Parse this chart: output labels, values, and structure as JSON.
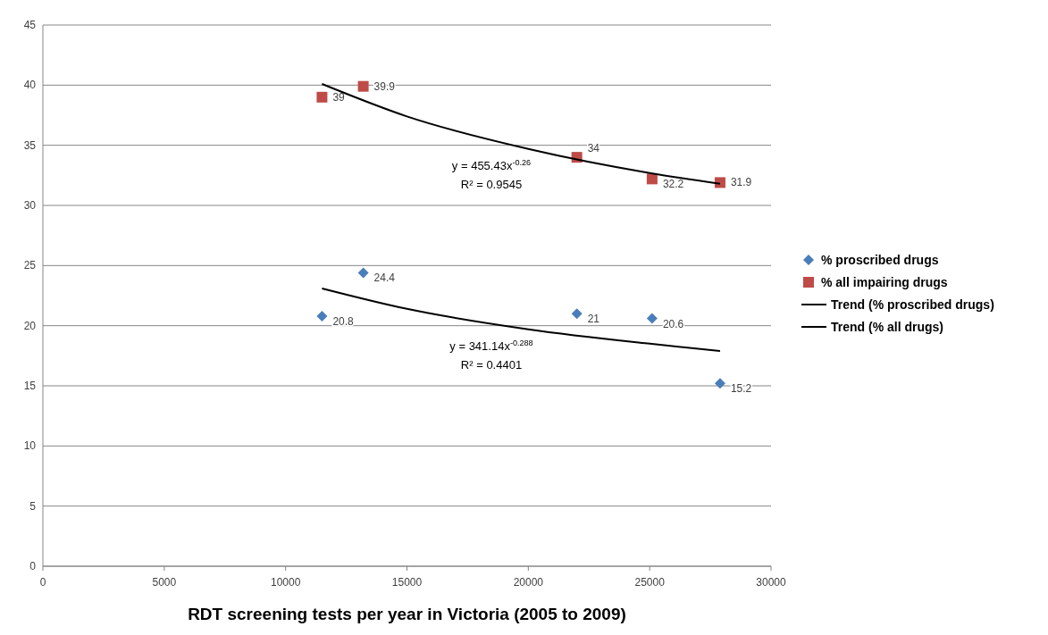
{
  "chart_data": {
    "type": "scatter",
    "xlabel": "RDT screening tests per year in Victoria (2005 to 2009)",
    "xlim": [
      0,
      30000
    ],
    "xticks": [
      0,
      5000,
      10000,
      15000,
      20000,
      25000,
      30000
    ],
    "ylim": [
      0,
      45
    ],
    "yticks": [
      0,
      5,
      10,
      15,
      20,
      25,
      30,
      35,
      40,
      45
    ],
    "grid": "y",
    "legend": "right",
    "series": [
      {
        "name": "% proscribed drugs",
        "color": "#4a7ebb",
        "marker": "diamond",
        "x": [
          11500,
          13200,
          22000,
          25100,
          27900
        ],
        "values": [
          20.8,
          24.4,
          21,
          20.6,
          15.2
        ],
        "value_labels": [
          "20.8",
          "24.4",
          "21",
          "20.6",
          "15.2"
        ]
      },
      {
        "name": "% all impairing drugs",
        "color": "#be4b48",
        "marker": "square",
        "x": [
          11500,
          13200,
          22000,
          25100,
          27900
        ],
        "values": [
          39,
          39.9,
          34,
          32.2,
          31.9
        ],
        "value_labels": [
          "39",
          "39.9",
          "34",
          "32.2",
          "31.9"
        ]
      },
      {
        "name": "Trend (% proscribed drugs)",
        "type": "line",
        "color": "#000000",
        "x": [
          11500,
          15000,
          20000,
          25000,
          27900
        ],
        "values": [
          23.1,
          21.4,
          19.7,
          18.5,
          17.9
        ]
      },
      {
        "name": "Trend (% all drugs)",
        "type": "line",
        "color": "#000000",
        "x": [
          11500,
          15000,
          20000,
          25000,
          27900
        ],
        "values": [
          40.1,
          37.4,
          34.7,
          32.7,
          31.8
        ]
      }
    ],
    "annotations": [
      "y = 455.43x$^{-0.26}$",
      "R² = 0.9545",
      "y = 341.14x$^{-0.288}$",
      "R² = 0.4401"
    ]
  }
}
